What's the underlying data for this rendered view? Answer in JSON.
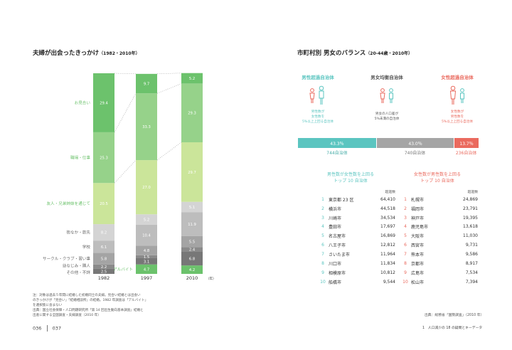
{
  "left": {
    "title": "夫婦が出会ったきっかけ",
    "title_sub": "（1982・2010年）"
  },
  "right": {
    "title": "市町村別 男女のバランス",
    "title_sub": "（20-44歳・2010年）"
  },
  "chart_data": [
    {
      "type": "bar",
      "stacked": true,
      "categories": [
        "1982",
        "1997",
        "2010"
      ],
      "x_unit": "（年）",
      "series": [
        {
          "name": "アルバイト",
          "values": [
            null,
            4.7,
            4.2
          ],
          "color": "#6cc26c"
        },
        {
          "name": "その他・不詳",
          "values": [
            2.5,
            3.1,
            6.8
          ],
          "color": "#777777"
        },
        {
          "name": "幼なじみ・隣人",
          "values": [
            2.2,
            1.5,
            2.4
          ],
          "color": "#8a8a8a"
        },
        {
          "name": "サークル・クラブ・習い事",
          "values": [
            5.8,
            4.8,
            5.5
          ],
          "color": "#a4a4a4"
        },
        {
          "name": "学校",
          "values": [
            6.1,
            10.4,
            11.9
          ],
          "color": "#bdbdbd"
        },
        {
          "name": "街なか・旅先",
          "values": [
            8.2,
            5.2,
            5.1
          ],
          "color": "#d4d4d4"
        },
        {
          "name": "友人・兄弟姉妹を通じて",
          "values": [
            20.5,
            27.0,
            29.7
          ],
          "color": "#cbe59a"
        },
        {
          "name": "職場・仕事",
          "values": [
            25.3,
            33.3,
            29.3
          ],
          "color": "#96d28a"
        },
        {
          "name": "お見合い",
          "values": [
            29.4,
            9.7,
            5.2
          ],
          "color": "#6cc26c"
        }
      ],
      "ylim": [
        0,
        100
      ]
    },
    {
      "type": "bar",
      "stacked": true,
      "orientation": "horizontal",
      "categories": [
        "男性超過自治体",
        "男女均衡自治体",
        "女性超過自治体"
      ],
      "values_percent": [
        43.3,
        43.0,
        13.7
      ],
      "value_labels": [
        "43.3％",
        "43.0％",
        "13.7％"
      ],
      "counts": [
        744,
        740,
        236
      ],
      "count_labels": [
        "744自治体",
        "740自治体",
        "236自治体"
      ],
      "colors": [
        "#5bc5c0",
        "#a5a5a5",
        "#ea6a5e"
      ]
    }
  ],
  "categories": [
    {
      "title": "男性超過自治体",
      "desc": [
        "男性数が",
        "女性数を",
        "5%以上上回る自治体"
      ],
      "color": "#5bc5c0"
    },
    {
      "title": "男女均衡自治体",
      "desc": [
        "男女の人口差が",
        "5%未満の自治体"
      ],
      "color": "#555555"
    },
    {
      "title": "女性超過自治体",
      "desc": [
        "女性数が",
        "男性数を",
        "5%以上上回る自治体"
      ],
      "color": "#ea6a5e"
    }
  ],
  "male_top": {
    "heading": [
      "男性数が女性数を上回る",
      "トップ 10 自治体"
    ],
    "unit": "超過数",
    "rows": [
      {
        "rank": "1",
        "city": "東京都 23 区",
        "value": "64,410"
      },
      {
        "rank": "2",
        "city": "横浜市",
        "value": "44,518"
      },
      {
        "rank": "3",
        "city": "川崎市",
        "value": "34,534"
      },
      {
        "rank": "4",
        "city": "豊田市",
        "value": "17,697"
      },
      {
        "rank": "5",
        "city": "名古屋市",
        "value": "16,869"
      },
      {
        "rank": "6",
        "city": "八王子市",
        "value": "12,812"
      },
      {
        "rank": "7",
        "city": "さいたま市",
        "value": "11,964"
      },
      {
        "rank": "8",
        "city": "川口市",
        "value": "11,834"
      },
      {
        "rank": "9",
        "city": "相模原市",
        "value": "10,812"
      },
      {
        "rank": "10",
        "city": "船橋市",
        "value": "9,544"
      }
    ]
  },
  "female_top": {
    "heading": [
      "女性数が男性数を上回る",
      "トップ 10 自治体"
    ],
    "unit": "超過数",
    "rows": [
      {
        "rank": "1",
        "city": "札幌市",
        "value": "24,869"
      },
      {
        "rank": "2",
        "city": "福岡市",
        "value": "23,791"
      },
      {
        "rank": "3",
        "city": "神戸市",
        "value": "19,395"
      },
      {
        "rank": "4",
        "city": "鹿児島市",
        "value": "13,618"
      },
      {
        "rank": "5",
        "city": "大阪市",
        "value": "11,030"
      },
      {
        "rank": "6",
        "city": "西宮市",
        "value": "9,731"
      },
      {
        "rank": "7",
        "city": "熊本市",
        "value": "9,586"
      },
      {
        "rank": "8",
        "city": "京都市",
        "value": "8,917"
      },
      {
        "rank": "9",
        "city": "広島市",
        "value": "7,534"
      },
      {
        "rank": "10",
        "city": "松山市",
        "value": "7,394"
      }
    ]
  },
  "notes": [
    "注：対象は過去５年間に結婚した初婚同士の夫婦。見合い結婚とは出会い",
    "のきっかけが「見合い」「結婚相談所」の結婚。1982 年調査は「アルバイト」",
    "を選択肢に含まない",
    "出典：国立社会保障・人口問題研究所「第 14 回出生動向基本調査」結婚と",
    "出産に関する全国調査・夫婦調査（2010 年）"
  ],
  "source_right": "出典：総務省「国勢調査」（2010 年）",
  "page_left": "036",
  "page_right": "037",
  "running_head": "1　人口減少の 18 の疑問とキーデータ"
}
